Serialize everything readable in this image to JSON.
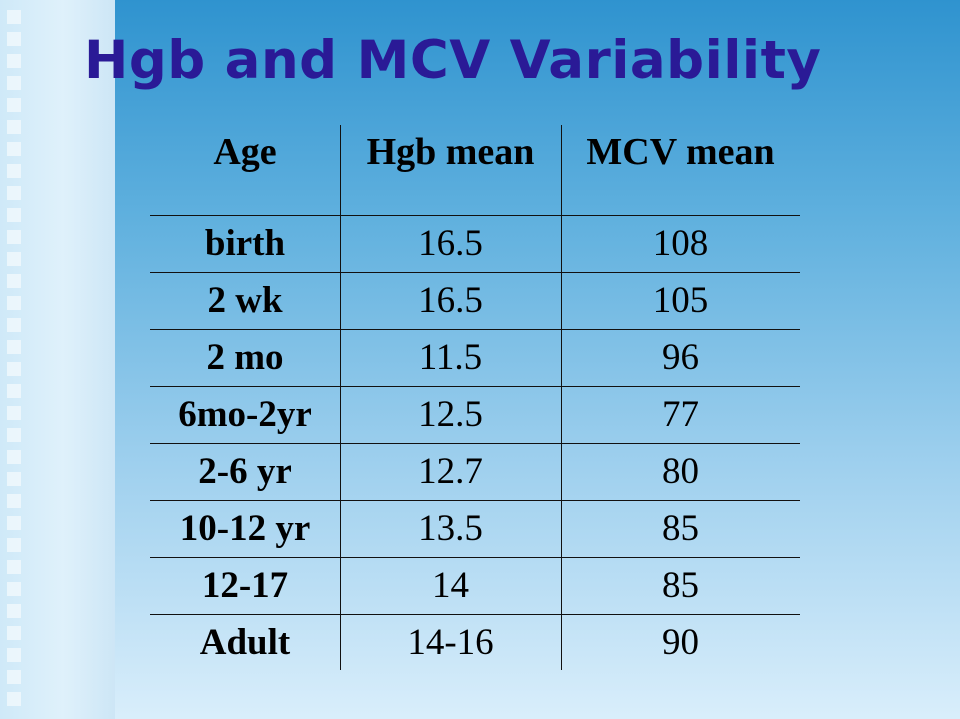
{
  "slide": {
    "title": "Hgb and MCV Variability"
  },
  "table": {
    "headers": [
      "Age",
      "Hgb mean",
      "MCV mean"
    ],
    "rows": [
      [
        "birth",
        "16.5",
        "108"
      ],
      [
        "2 wk",
        "16.5",
        "105"
      ],
      [
        "2 mo",
        "11.5",
        "96"
      ],
      [
        "6mo-2yr",
        "12.5",
        "77"
      ],
      [
        "2-6 yr",
        "12.7",
        "80"
      ],
      [
        "10-12 yr",
        "13.5",
        "85"
      ],
      [
        "12-17",
        "14",
        "85"
      ],
      [
        "Adult",
        "14-16",
        "90"
      ]
    ]
  },
  "colors": {
    "title": "#2a1a96",
    "background_top": "#2f93cf",
    "background_bottom": "#d9eefb"
  }
}
